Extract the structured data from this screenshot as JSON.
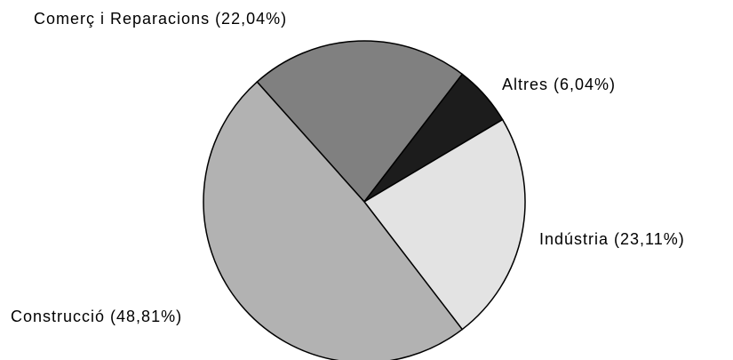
{
  "chart_data": {
    "type": "pie",
    "values": [
      22.04,
      6.04,
      23.11,
      48.81
    ],
    "value_labels": [
      "Comerç i Reparacions (22,04%)",
      "Altres (6,04%)",
      "Indústria (23,11%)",
      "Construcció (48,81%)"
    ],
    "colors": [
      "#808080",
      "#1c1c1c",
      "#e3e3e3",
      "#b2b2b2"
    ]
  }
}
